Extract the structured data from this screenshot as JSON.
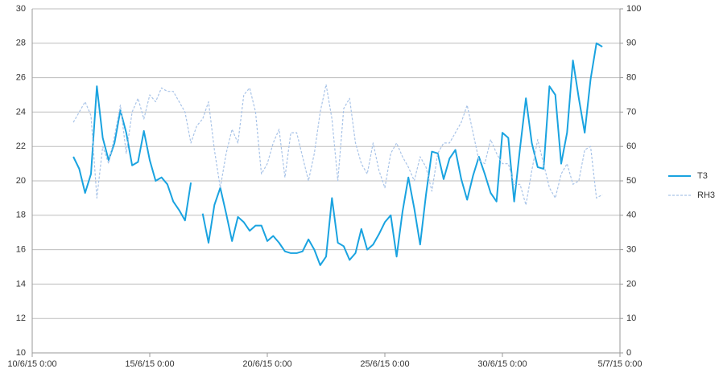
{
  "chart_data": {
    "type": "line",
    "x": [
      "2015-06-11T18:00",
      "2015-06-12T00:00",
      "2015-06-12T06:00",
      "2015-06-12T12:00",
      "2015-06-12T18:00",
      "2015-06-13T00:00",
      "2015-06-13T06:00",
      "2015-06-13T12:00",
      "2015-06-13T18:00",
      "2015-06-14T00:00",
      "2015-06-14T06:00",
      "2015-06-14T12:00",
      "2015-06-14T18:00",
      "2015-06-15T00:00",
      "2015-06-15T06:00",
      "2015-06-15T12:00",
      "2015-06-15T18:00",
      "2015-06-16T00:00",
      "2015-06-16T06:00",
      "2015-06-16T12:00",
      "2015-06-16T18:00",
      "2015-06-17T00:00",
      "2015-06-17T06:00",
      "2015-06-17T12:00",
      "2015-06-17T18:00",
      "2015-06-18T00:00",
      "2015-06-18T06:00",
      "2015-06-18T12:00",
      "2015-06-18T18:00",
      "2015-06-19T00:00",
      "2015-06-19T06:00",
      "2015-06-19T12:00",
      "2015-06-19T18:00",
      "2015-06-20T00:00",
      "2015-06-20T06:00",
      "2015-06-20T12:00",
      "2015-06-20T18:00",
      "2015-06-21T00:00",
      "2015-06-21T06:00",
      "2015-06-21T12:00",
      "2015-06-21T18:00",
      "2015-06-22T00:00",
      "2015-06-22T06:00",
      "2015-06-22T12:00",
      "2015-06-22T18:00",
      "2015-06-23T00:00",
      "2015-06-23T06:00",
      "2015-06-23T12:00",
      "2015-06-23T18:00",
      "2015-06-24T00:00",
      "2015-06-24T06:00",
      "2015-06-24T12:00",
      "2015-06-24T18:00",
      "2015-06-25T00:00",
      "2015-06-25T06:00",
      "2015-06-25T12:00",
      "2015-06-25T18:00",
      "2015-06-26T00:00",
      "2015-06-26T06:00",
      "2015-06-26T12:00",
      "2015-06-26T18:00",
      "2015-06-27T00:00",
      "2015-06-27T06:00",
      "2015-06-27T12:00",
      "2015-06-27T18:00",
      "2015-06-28T00:00",
      "2015-06-28T06:00",
      "2015-06-28T12:00",
      "2015-06-28T18:00",
      "2015-06-29T00:00",
      "2015-06-29T06:00",
      "2015-06-29T12:00",
      "2015-06-29T18:00",
      "2015-06-30T00:00",
      "2015-06-30T06:00",
      "2015-06-30T12:00",
      "2015-06-30T18:00",
      "2015-07-01T00:00",
      "2015-07-01T06:00",
      "2015-07-01T12:00",
      "2015-07-01T18:00",
      "2015-07-02T00:00",
      "2015-07-02T06:00",
      "2015-07-02T12:00",
      "2015-07-02T18:00",
      "2015-07-03T00:00",
      "2015-07-03T06:00",
      "2015-07-03T12:00",
      "2015-07-03T18:00",
      "2015-07-04T00:00",
      "2015-07-04T06:00"
    ],
    "series": [
      {
        "name": "T3",
        "color": "#1aa3e0",
        "values": [
          21.4,
          20.7,
          19.3,
          20.4,
          25.5,
          22.5,
          21.2,
          22.2,
          24.1,
          22.8,
          20.9,
          21.1,
          22.9,
          21.2,
          20.0,
          20.2,
          19.8,
          18.8,
          18.3,
          17.7,
          19.9,
          null,
          18.1,
          16.4,
          18.6,
          19.6,
          18.1,
          16.5,
          17.9,
          17.6,
          17.1,
          17.4,
          17.4,
          16.5,
          16.8,
          16.4,
          15.9,
          15.8,
          15.8,
          15.9,
          16.6,
          16.0,
          15.1,
          15.6,
          19.0,
          16.4,
          16.2,
          15.4,
          15.8,
          17.2,
          16.0,
          16.3,
          16.9,
          17.6,
          18.0,
          15.6,
          18.2,
          20.2,
          18.4,
          16.3,
          19.2,
          21.7,
          21.6,
          20.1,
          21.3,
          21.8,
          20.1,
          18.9,
          20.3,
          21.4,
          20.4,
          19.3,
          18.8,
          22.8,
          22.5,
          18.8,
          21.9,
          24.8,
          22.2,
          20.8,
          20.7,
          25.5,
          25.0,
          21.0,
          22.8,
          27.0,
          24.8,
          22.8,
          25.9,
          28.0,
          27.8
        ]
      },
      {
        "name": "RH3",
        "color": "#a9c4e8",
        "axis": "y2",
        "dashed": true,
        "values": [
          67,
          70,
          73,
          69,
          45,
          60,
          55,
          63,
          72,
          58,
          70,
          74,
          68,
          75,
          73,
          77,
          76,
          76,
          73,
          70,
          61,
          66,
          68,
          73,
          59,
          48,
          58,
          65,
          61,
          75,
          77,
          70,
          52,
          55,
          61,
          65,
          51,
          64,
          64,
          57,
          50,
          58,
          70,
          78,
          68,
          50,
          71,
          74,
          61,
          55,
          52,
          61,
          53,
          48,
          58,
          61,
          57,
          54,
          50,
          57,
          54,
          47,
          58,
          61,
          61,
          64,
          67,
          72,
          64,
          56,
          55,
          62,
          58,
          55,
          55,
          49,
          49,
          43,
          53,
          62,
          55,
          48,
          45,
          52,
          55,
          49,
          50,
          59,
          60,
          45,
          46
        ]
      }
    ],
    "xlim": [
      "2015-06-10T00:00",
      "2015-07-05T00:00"
    ],
    "xticks": [
      {
        "value": "2015-06-10T00:00",
        "label": "10/6/15 0:00"
      },
      {
        "value": "2015-06-15T00:00",
        "label": "15/6/15 0:00"
      },
      {
        "value": "2015-06-20T00:00",
        "label": "20/6/15 0:00"
      },
      {
        "value": "2015-06-25T00:00",
        "label": "25/6/15 0:00"
      },
      {
        "value": "2015-06-30T00:00",
        "label": "30/6/15 0:00"
      },
      {
        "value": "2015-07-05T00:00",
        "label": "5/7/15 0:00"
      }
    ],
    "ylim": [
      10,
      30
    ],
    "yticks": [
      10,
      12,
      14,
      16,
      18,
      20,
      22,
      24,
      26,
      28,
      30
    ],
    "y2lim": [
      0,
      100
    ],
    "y2ticks": [
      0,
      10,
      20,
      30,
      40,
      50,
      60,
      70,
      80,
      90,
      100
    ],
    "grid": true,
    "legend": "right"
  }
}
